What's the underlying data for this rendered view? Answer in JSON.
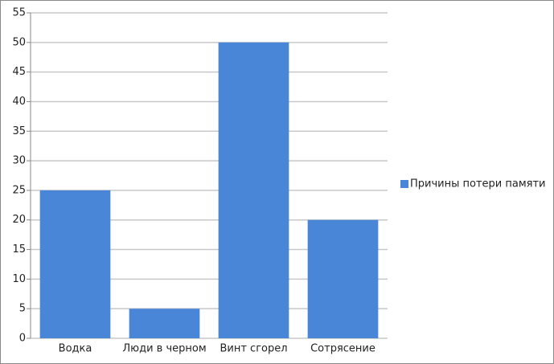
{
  "chart_data": {
    "type": "bar",
    "categories": [
      "Водка",
      "Люди в черном",
      "Винт сгорел",
      "Сотрясение"
    ],
    "series": [
      {
        "name": "Причины потери памяти",
        "color": "#4a86d8",
        "values": [
          25,
          5,
          50,
          20
        ]
      }
    ],
    "ylim": [
      0,
      55
    ],
    "yticks": [
      0,
      5,
      10,
      15,
      20,
      25,
      30,
      35,
      40,
      45,
      50,
      55
    ],
    "grid": true,
    "legend": "right"
  }
}
